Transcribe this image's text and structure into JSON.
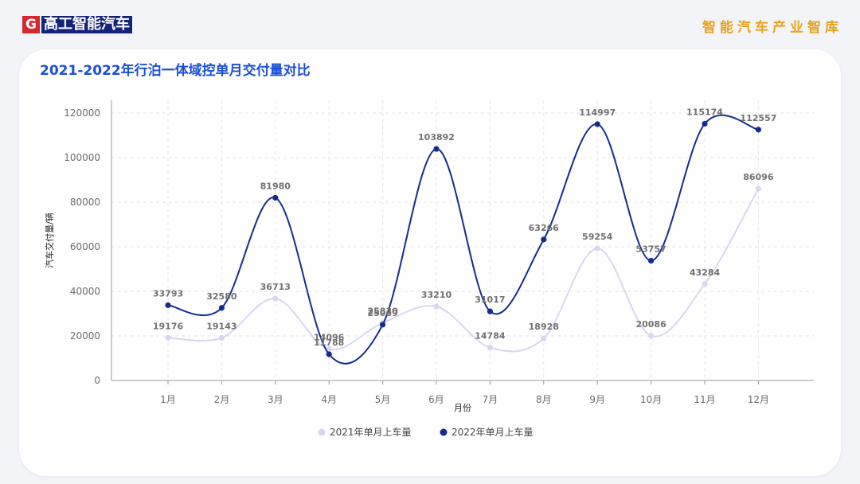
{
  "header": {
    "logo_letter": "G",
    "logo_name": "高工智能汽车",
    "brand_right": "智能汽车产业智库"
  },
  "colors": {
    "series_2021": "#d9d6f0",
    "series_2022": "#142c8e",
    "title": "#1a4fd8",
    "brand_right": "#e9a21c",
    "logo_red": "#d7262e",
    "logo_navy": "#14237a"
  },
  "chart_data": {
    "type": "line",
    "title": "2021-2022年行泊一体域控单月交付量对比",
    "xlabel": "月份",
    "ylabel": "汽车交付量/辆",
    "categories": [
      "1月",
      "2月",
      "3月",
      "4月",
      "5月",
      "6月",
      "7月",
      "8月",
      "9月",
      "10月",
      "11月",
      "12月"
    ],
    "ylim": [
      0,
      120000
    ],
    "yticks": [
      0,
      20000,
      40000,
      60000,
      80000,
      100000,
      120000
    ],
    "grid": true,
    "legend_position": "bottom",
    "series": [
      {
        "name": "2021年单月上车量",
        "values": [
          19176,
          19143,
          36713,
          14096,
          25830,
          33210,
          14784,
          18928,
          59254,
          20086,
          43284,
          86096
        ]
      },
      {
        "name": "2022年单月上车量",
        "values": [
          33793,
          32580,
          81980,
          11788,
          25069,
          103892,
          31017,
          63266,
          114997,
          53757,
          115174,
          112557
        ]
      }
    ]
  }
}
